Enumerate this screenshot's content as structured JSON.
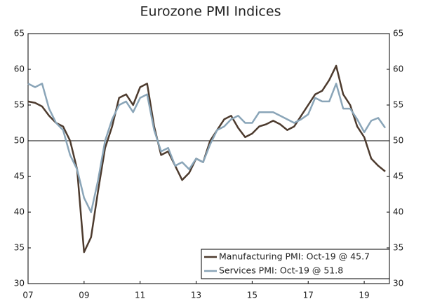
{
  "chart_data": {
    "type": "line",
    "title": "Eurozone PMI Indices",
    "x": [
      2007.0,
      2007.25,
      2007.5,
      2007.75,
      2008.0,
      2008.25,
      2008.5,
      2008.75,
      2009.0,
      2009.25,
      2009.5,
      2009.75,
      2010.0,
      2010.25,
      2010.5,
      2010.75,
      2011.0,
      2011.25,
      2011.5,
      2011.75,
      2012.0,
      2012.25,
      2012.5,
      2012.75,
      2013.0,
      2013.25,
      2013.5,
      2013.75,
      2014.0,
      2014.25,
      2014.5,
      2014.75,
      2015.0,
      2015.25,
      2015.5,
      2015.75,
      2016.0,
      2016.25,
      2016.5,
      2016.75,
      2017.0,
      2017.25,
      2017.5,
      2017.75,
      2018.0,
      2018.25,
      2018.5,
      2018.75,
      2019.0,
      2019.25,
      2019.5,
      2019.75
    ],
    "series": [
      {
        "name": "Manufacturing PMI: Oct-19 @ 45.7",
        "color": "#4d3b2e",
        "values": [
          55.5,
          55.3,
          54.8,
          53.5,
          52.5,
          52,
          50,
          46,
          34.4,
          36.5,
          43,
          49,
          52,
          56,
          56.5,
          55,
          57.5,
          58,
          52,
          48,
          48.5,
          46.5,
          44.5,
          45.5,
          47.5,
          47,
          50,
          51.5,
          53,
          53.5,
          51.8,
          50.5,
          51,
          52,
          52.3,
          52.8,
          52.3,
          51.5,
          52,
          53.5,
          55,
          56.5,
          57,
          58.5,
          60.5,
          56.5,
          55,
          52,
          50.5,
          47.5,
          46.5,
          45.7
        ]
      },
      {
        "name": "Services PMI: Oct-19 @ 51.8",
        "color": "#8aa5b8",
        "values": [
          58,
          57.5,
          58,
          54.5,
          52.5,
          51.5,
          48,
          46,
          42,
          40,
          44.5,
          50,
          53,
          55,
          55.5,
          54,
          56,
          56.5,
          51.5,
          48.5,
          49,
          46.5,
          47,
          46,
          47.5,
          47,
          49.5,
          51.5,
          52,
          53,
          53.5,
          52.5,
          52.5,
          54,
          54,
          54,
          53.5,
          53,
          52.5,
          53,
          53.7,
          56,
          55.5,
          55.5,
          58,
          54.5,
          54.5,
          53,
          51.2,
          52.8,
          53.2,
          51.8
        ]
      }
    ],
    "xlim": [
      2007,
      2019.9
    ],
    "xticks": [
      {
        "value": 2007,
        "label": "07"
      },
      {
        "value": 2009,
        "label": "09"
      },
      {
        "value": 2011,
        "label": "11"
      },
      {
        "value": 2013,
        "label": "13"
      },
      {
        "value": 2015,
        "label": "15"
      },
      {
        "value": 2017,
        "label": "17"
      },
      {
        "value": 2019,
        "label": "19"
      }
    ],
    "ylim": [
      30,
      65
    ],
    "yticks": [
      30,
      35,
      40,
      45,
      50,
      55,
      60,
      65
    ],
    "reference_line": 50,
    "legend": "lower right"
  }
}
